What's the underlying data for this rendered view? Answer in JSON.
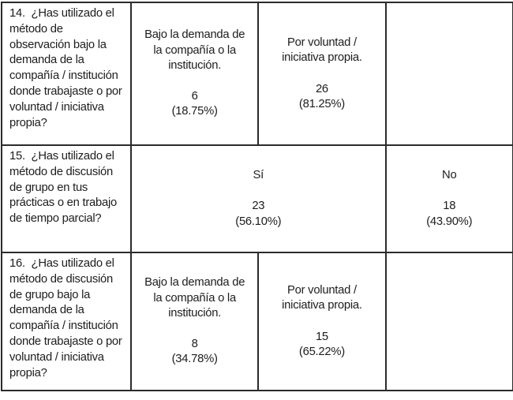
{
  "table": {
    "description": "Tabla de resultados de encuesta, preguntas 14-16",
    "border_color": "#2b2b2b",
    "text_color": "#1d1d1d",
    "background_color": "#ffffff",
    "rows": [
      {
        "question": "14.  ¿Has utilizado el método de observación bajo la demanda de la compañía / institución donde trabajaste o por voluntad / iniciativa propia?",
        "cells": [
          {
            "label": "Bajo la demanda de la compañía o la institución.",
            "count": "6",
            "percent": "(18.75%)"
          },
          {
            "label": "Por voluntad / iniciativa propia.",
            "count": "26",
            "percent": "(81.25%)"
          },
          {
            "label": "",
            "count": "",
            "percent": ""
          }
        ]
      },
      {
        "question": "15.  ¿Has utilizado el método de discusión de grupo en tus prácticas o en trabajo de tiempo parcial?",
        "cells": [
          {
            "label": "Sí",
            "count": "23",
            "percent": "(56.10%)"
          },
          {
            "label": "No",
            "count": "18",
            "percent": "(43.90%)"
          }
        ]
      },
      {
        "question": "16.  ¿Has utilizado el método de discusión de grupo bajo la demanda de la compañía / institución donde trabajaste o por voluntad / iniciativa propia?",
        "cells": [
          {
            "label": "Bajo la demanda de la compañía o la institución.",
            "count": "8",
            "percent": "(34.78%)"
          },
          {
            "label": "Por voluntad / iniciativa propia.",
            "count": "15",
            "percent": "(65.22%)"
          },
          {
            "label": "",
            "count": "",
            "percent": ""
          }
        ]
      }
    ]
  }
}
